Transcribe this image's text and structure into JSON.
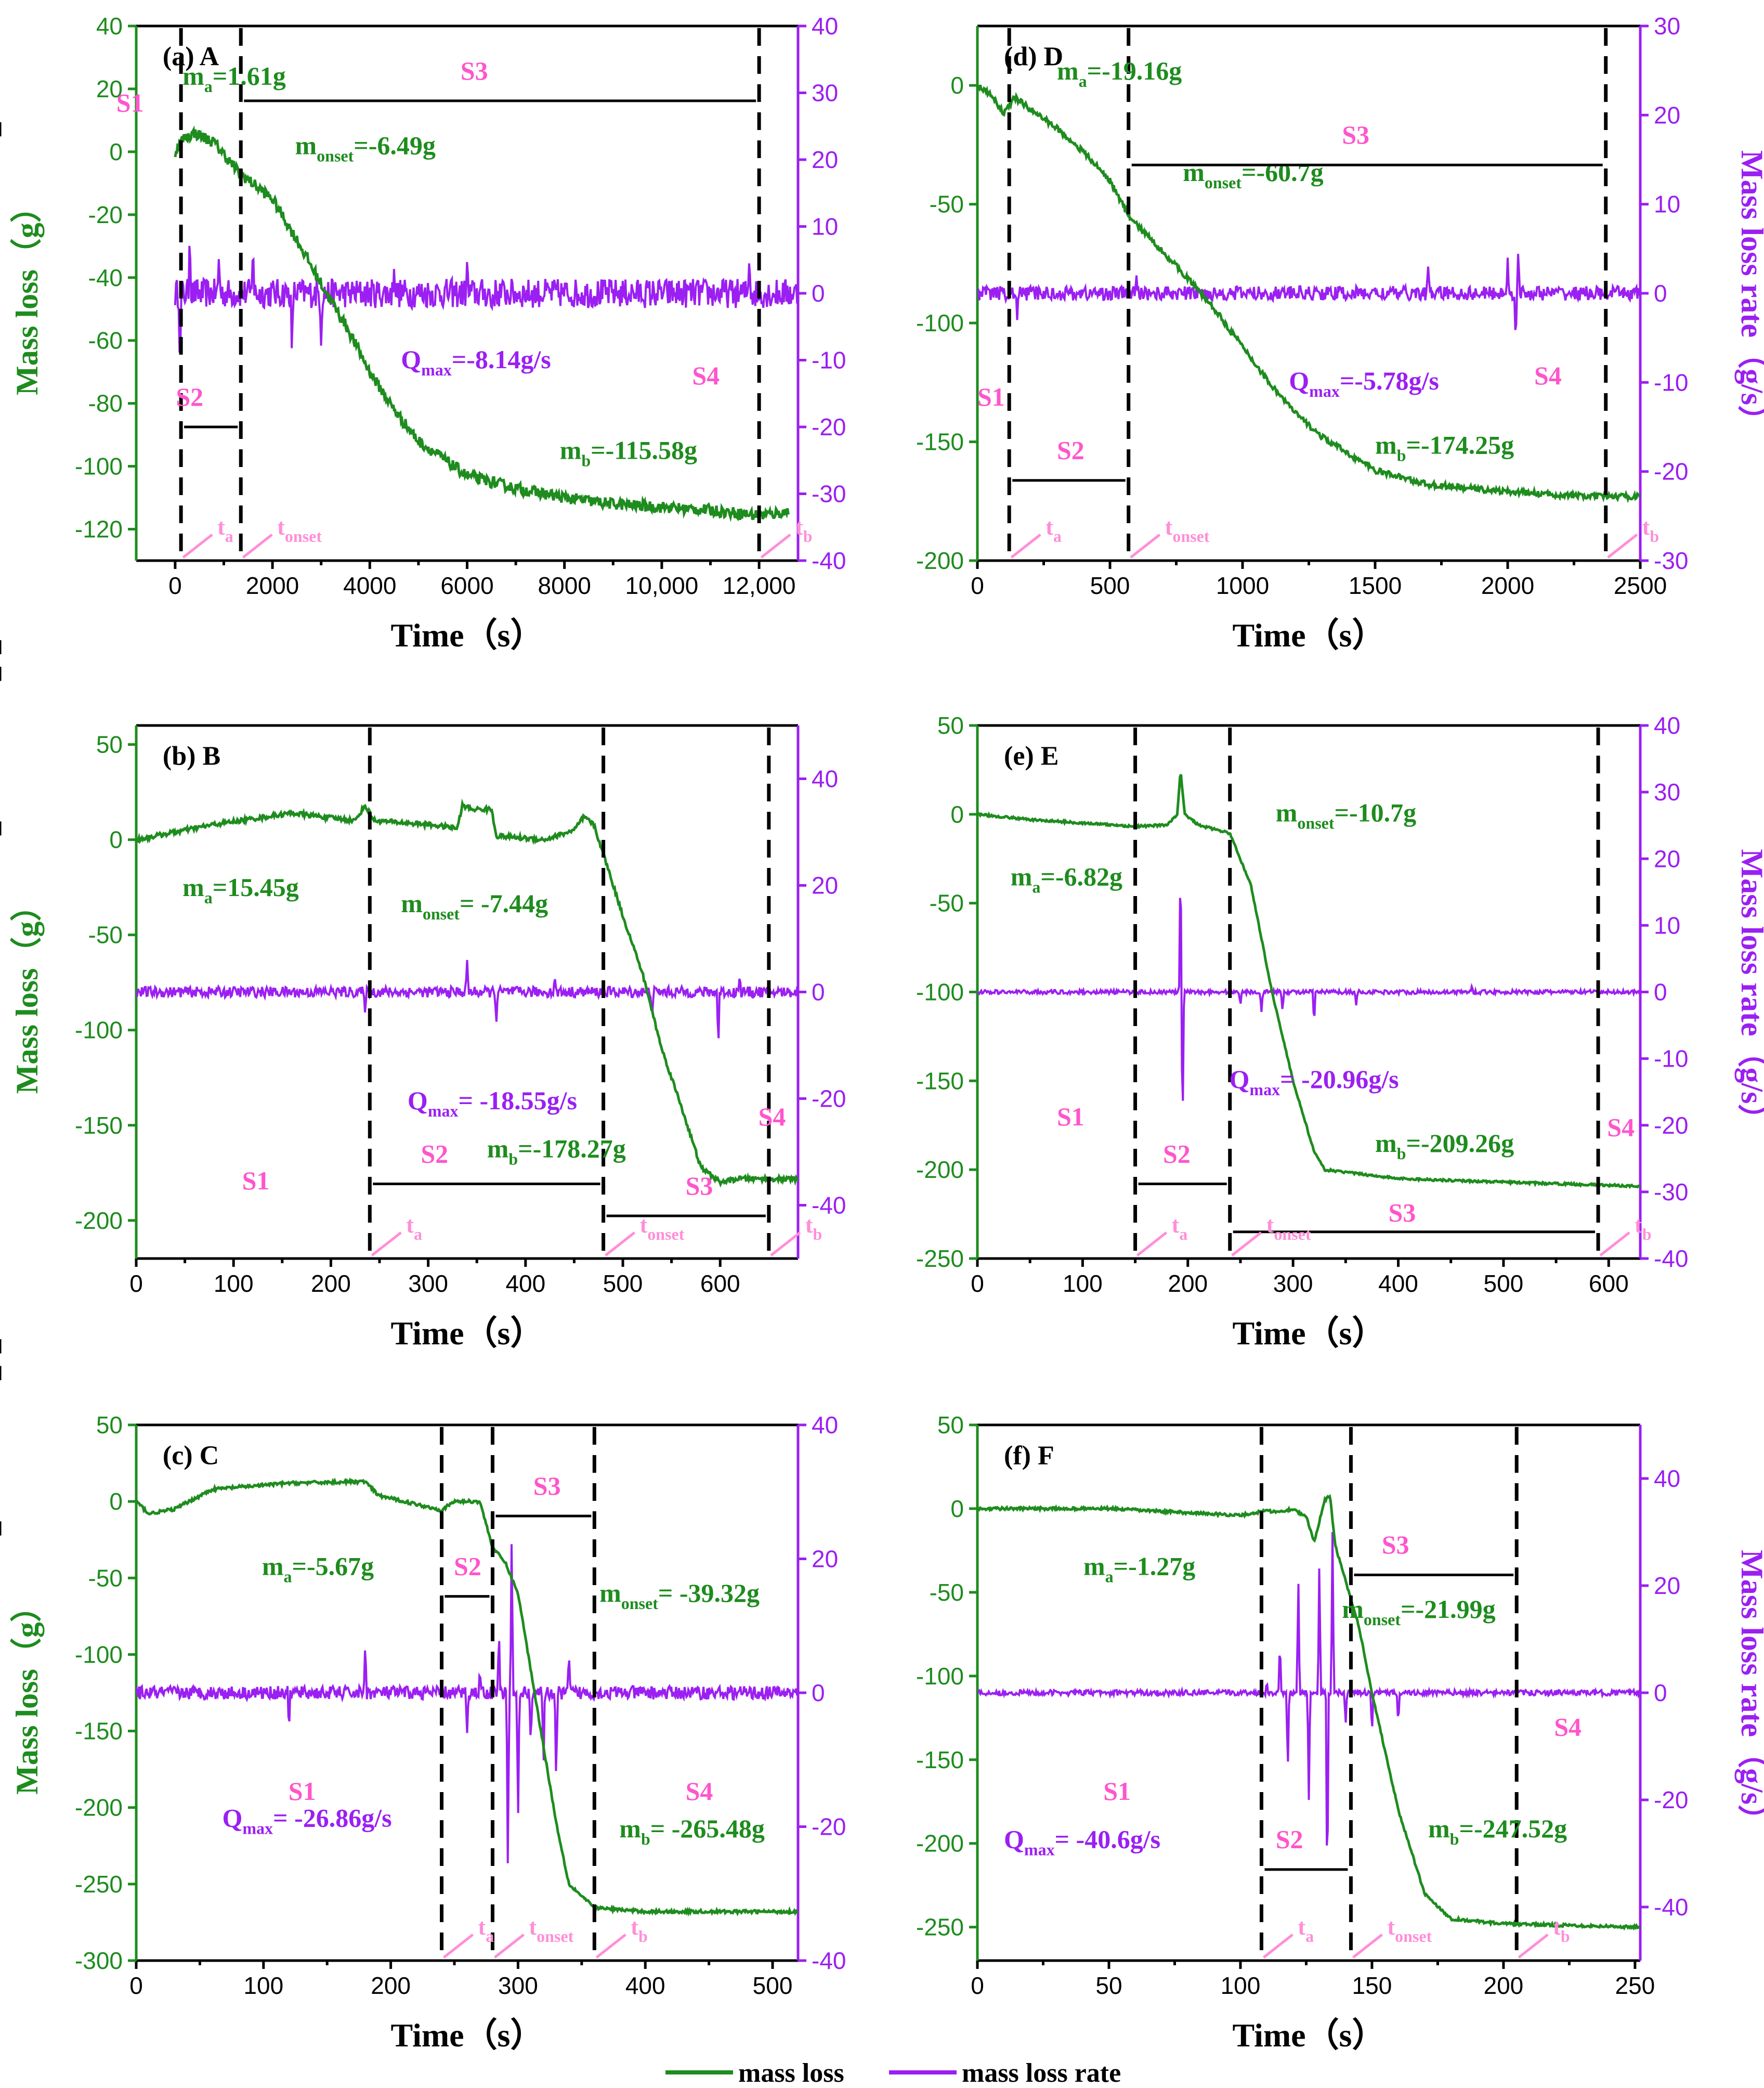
{
  "legend": {
    "mass_loss": "mass loss",
    "mass_loss_rate": "mass loss rate"
  },
  "colors": {
    "mass_loss": "#1e8c1e",
    "mass_loss_rate": "#9b1ff2",
    "stage_label": "#ff55cc",
    "time_label": "#ff8ed8"
  },
  "chart_data": [
    {
      "id": "a",
      "type": "line",
      "label": "(a)",
      "sample": "A",
      "xlabel": "Time（s）",
      "ylabel": "Mass loss（g）",
      "y2label": "",
      "xlim": [
        -800,
        12800
      ],
      "xticks": [
        0,
        2000,
        4000,
        6000,
        8000,
        10000,
        12000
      ],
      "xticklabels": [
        "0",
        "2000",
        "4000",
        "6000",
        "8000",
        "10,000",
        "12,000"
      ],
      "ylim": [
        -130,
        40
      ],
      "yticks": [
        -120,
        -100,
        -80,
        -60,
        -40,
        -20,
        0,
        20,
        40
      ],
      "y2lim": [
        -40,
        40
      ],
      "y2ticks": [
        -40,
        -30,
        -20,
        -10,
        0,
        10,
        20,
        30,
        40
      ],
      "mass_keys": [
        [
          0,
          0
        ],
        [
          150,
          4
        ],
        [
          400,
          6
        ],
        [
          800,
          3
        ],
        [
          1300,
          -6.49
        ],
        [
          2000,
          -15
        ],
        [
          2500,
          -28
        ],
        [
          3000,
          -42
        ],
        [
          3500,
          -55
        ],
        [
          4000,
          -70
        ],
        [
          4500,
          -82
        ],
        [
          5000,
          -92
        ],
        [
          6000,
          -103
        ],
        [
          7000,
          -107
        ],
        [
          8000,
          -110
        ],
        [
          9000,
          -112
        ],
        [
          10000,
          -113
        ],
        [
          11000,
          -114
        ],
        [
          12000,
          -115.6
        ],
        [
          12600,
          -114.5
        ]
      ],
      "mass_noise": 1.8,
      "rate_noise": 2.2,
      "rate_spikes": [
        [
          100,
          -12
        ],
        [
          300,
          10
        ],
        [
          900,
          6
        ],
        [
          1600,
          8
        ],
        [
          2400,
          -10
        ],
        [
          3000,
          -8.14
        ],
        [
          4500,
          4
        ],
        [
          6000,
          5
        ],
        [
          6500,
          -3
        ],
        [
          11800,
          6
        ]
      ],
      "dividers": [
        120,
        1350,
        12000
      ],
      "ann": {
        "ma": "=1.61g",
        "monset": "=-6.49g",
        "qmax": "=-8.14g/s",
        "mb": "=-115.58g"
      },
      "stages": {
        "s1": "S1",
        "s2": "S2",
        "s3": "S3",
        "s4": "S4"
      }
    },
    {
      "id": "b",
      "type": "line",
      "label": "(b)",
      "sample": "B",
      "xlabel": "Time（s）",
      "ylabel": "Mass loss（g）",
      "y2label": "",
      "xlim": [
        0,
        680
      ],
      "xticks": [
        0,
        100,
        200,
        300,
        400,
        500,
        600
      ],
      "xticklabels": [
        "0",
        "100",
        "200",
        "300",
        "400",
        "500",
        "600"
      ],
      "ylim": [
        -220,
        60
      ],
      "yticks": [
        -200,
        -150,
        -100,
        -50,
        0,
        50
      ],
      "y2lim": [
        -50,
        50
      ],
      "y2ticks": [
        -40,
        -20,
        0,
        20,
        40
      ],
      "mass_keys": [
        [
          0,
          0
        ],
        [
          80,
          8
        ],
        [
          160,
          14
        ],
        [
          225,
          10
        ],
        [
          235,
          18
        ],
        [
          245,
          10
        ],
        [
          300,
          8
        ],
        [
          330,
          6
        ],
        [
          335,
          18
        ],
        [
          345,
          16
        ],
        [
          365,
          16
        ],
        [
          370,
          2
        ],
        [
          420,
          0
        ],
        [
          450,
          5
        ],
        [
          460,
          12
        ],
        [
          470,
          8
        ],
        [
          480,
          -7.44
        ],
        [
          500,
          -40
        ],
        [
          520,
          -70
        ],
        [
          540,
          -110
        ],
        [
          560,
          -140
        ],
        [
          580,
          -172
        ],
        [
          600,
          -180
        ],
        [
          620,
          -178
        ],
        [
          680,
          -178.3
        ]
      ],
      "mass_noise": 1.2,
      "rate_noise": 1.0,
      "rate_spikes": [
        [
          235,
          -4
        ],
        [
          340,
          6
        ],
        [
          370,
          -6
        ],
        [
          430,
          3
        ],
        [
          530,
          -5
        ],
        [
          598,
          22
        ],
        [
          598,
          -18
        ],
        [
          620,
          3
        ]
      ],
      "dividers": [
        240,
        480,
        650
      ],
      "ann": {
        "ma": "=15.45g",
        "monset": "= -7.44g",
        "qmax": "= -18.55g/s",
        "mb": "=-178.27g"
      },
      "stages": {
        "s1": "S1",
        "s2": "S2",
        "s3": "S3",
        "s4": "S4"
      }
    },
    {
      "id": "c",
      "type": "line",
      "label": "(c)",
      "sample": "C",
      "xlabel": "Time（s）",
      "ylabel": "Mass loss（g）",
      "y2label": "",
      "xlim": [
        0,
        520
      ],
      "xticks": [
        0,
        100,
        200,
        300,
        400,
        500
      ],
      "xticklabels": [
        "0",
        "100",
        "200",
        "300",
        "400",
        "500"
      ],
      "ylim": [
        -300,
        50
      ],
      "yticks": [
        -300,
        -250,
        -200,
        -150,
        -100,
        -50,
        0,
        50
      ],
      "y2lim": [
        -40,
        40
      ],
      "y2ticks": [
        -40,
        -20,
        0,
        20,
        40
      ],
      "mass_keys": [
        [
          0,
          0
        ],
        [
          10,
          -8
        ],
        [
          30,
          -5
        ],
        [
          60,
          8
        ],
        [
          120,
          12
        ],
        [
          180,
          13
        ],
        [
          190,
          4
        ],
        [
          240,
          -5.67
        ],
        [
          250,
          0
        ],
        [
          270,
          0
        ],
        [
          280,
          -30
        ],
        [
          290,
          -40
        ],
        [
          300,
          -60
        ],
        [
          310,
          -110
        ],
        [
          320,
          -160
        ],
        [
          330,
          -210
        ],
        [
          340,
          -250
        ],
        [
          360,
          -265.5
        ],
        [
          400,
          -268
        ],
        [
          520,
          -268
        ]
      ],
      "mass_noise": 1.0,
      "rate_noise": 1.0,
      "rate_spikes": [
        [
          120,
          -6
        ],
        [
          180,
          8
        ],
        [
          260,
          -6
        ],
        [
          270,
          4
        ],
        [
          285,
          10
        ],
        [
          292,
          -26.86
        ],
        [
          295,
          24
        ],
        [
          300,
          -20
        ],
        [
          310,
          -8
        ],
        [
          320,
          -12
        ],
        [
          330,
          -14
        ],
        [
          340,
          6
        ]
      ],
      "dividers": [
        240,
        280,
        360
      ],
      "ann": {
        "ma": "=-5.67g",
        "monset": "= -39.32g",
        "qmax": "= -26.86g/s",
        "mb": "= -265.48g"
      },
      "stages": {
        "s1": "S1",
        "s2": "S2",
        "s3": "S3",
        "s4": "S4"
      }
    },
    {
      "id": "d",
      "type": "line",
      "label": "(d)",
      "sample": "D",
      "xlabel": "Time（s）",
      "ylabel": "",
      "y2label": "Mass loss rate（g/s）",
      "xlim": [
        0,
        2500
      ],
      "xticks": [
        0,
        500,
        1000,
        1500,
        2000,
        2500
      ],
      "xticklabels": [
        "0",
        "500",
        "1000",
        "1500",
        "2000",
        "2500"
      ],
      "ylim": [
        -200,
        25
      ],
      "yticks": [
        -200,
        -150,
        -100,
        -50,
        0
      ],
      "y2lim": [
        -30,
        30
      ],
      "y2ticks": [
        -30,
        -20,
        -10,
        0,
        10,
        20,
        30
      ],
      "mass_keys": [
        [
          0,
          0
        ],
        [
          60,
          -5
        ],
        [
          100,
          -12
        ],
        [
          140,
          -5
        ],
        [
          200,
          -10
        ],
        [
          300,
          -18
        ],
        [
          400,
          -28
        ],
        [
          500,
          -40
        ],
        [
          570,
          -55
        ],
        [
          700,
          -70
        ],
        [
          800,
          -82
        ],
        [
          900,
          -95
        ],
        [
          1000,
          -110
        ],
        [
          1100,
          -125
        ],
        [
          1200,
          -138
        ],
        [
          1300,
          -148
        ],
        [
          1400,
          -155
        ],
        [
          1500,
          -162
        ],
        [
          1700,
          -168
        ],
        [
          2000,
          -171
        ],
        [
          2300,
          -173
        ],
        [
          2500,
          -173
        ]
      ],
      "mass_noise": 1.2,
      "rate_noise": 0.8,
      "rate_spikes": [
        [
          150,
          -3
        ],
        [
          600,
          2
        ],
        [
          1700,
          3
        ],
        [
          2000,
          4
        ],
        [
          2030,
          -5.78
        ],
        [
          2040,
          5
        ]
      ],
      "dividers": [
        120,
        570,
        2370
      ],
      "ann": {
        "ma": "=-19.16g",
        "monset": "=-60.7g",
        "qmax": "=-5.78g/s",
        "mb": "=-174.25g"
      },
      "stages": {
        "s1": "S1",
        "s2": "S2",
        "s3": "S3",
        "s4": "S4"
      }
    },
    {
      "id": "e",
      "type": "line",
      "label": "(e)",
      "sample": "E",
      "xlabel": "Time（s）",
      "ylabel": "",
      "y2label": "Mass loss rate（g/s）",
      "xlim": [
        0,
        630
      ],
      "xticks": [
        0,
        100,
        200,
        300,
        400,
        500,
        600
      ],
      "xticklabels": [
        "0",
        "100",
        "200",
        "300",
        "400",
        "500",
        "600"
      ],
      "ylim": [
        -250,
        50
      ],
      "yticks": [
        -250,
        -200,
        -150,
        -100,
        -50,
        0,
        50
      ],
      "y2lim": [
        -40,
        40
      ],
      "y2ticks": [
        -40,
        -30,
        -20,
        -10,
        0,
        10,
        20,
        30,
        40
      ],
      "mass_keys": [
        [
          0,
          0
        ],
        [
          50,
          -3
        ],
        [
          150,
          -6.82
        ],
        [
          180,
          -6
        ],
        [
          190,
          0
        ],
        [
          193,
          25
        ],
        [
          197,
          0
        ],
        [
          210,
          -6
        ],
        [
          240,
          -10.7
        ],
        [
          260,
          -40
        ],
        [
          280,
          -100
        ],
        [
          300,
          -150
        ],
        [
          320,
          -190
        ],
        [
          330,
          -200
        ],
        [
          400,
          -205
        ],
        [
          500,
          -207
        ],
        [
          630,
          -209.3
        ]
      ],
      "mass_noise": 0.6,
      "rate_noise": 0.3,
      "rate_spikes": [
        [
          193,
          20
        ],
        [
          195,
          -20.96
        ],
        [
          250,
          -2
        ],
        [
          270,
          -3
        ],
        [
          290,
          -3
        ],
        [
          320,
          -5
        ],
        [
          360,
          -2
        ],
        [
          470,
          1
        ]
      ],
      "dividers": [
        150,
        240,
        590
      ],
      "ann": {
        "ma": "=-6.82g",
        "monset": "=-10.7g",
        "qmax": "= -20.96g/s",
        "mb": "=-209.26g"
      },
      "stages": {
        "s1": "S1",
        "s2": "S2",
        "s3": "S3",
        "s4": "S4"
      }
    },
    {
      "id": "f",
      "type": "line",
      "label": "(f)",
      "sample": "F",
      "xlabel": "Time（s）",
      "ylabel": "",
      "y2label": "Mass loss rate（g/s）",
      "xlim": [
        0,
        252
      ],
      "xticks": [
        0,
        50,
        100,
        150,
        200,
        250
      ],
      "xticklabels": [
        "0",
        "50",
        "100",
        "150",
        "200",
        "250"
      ],
      "ylim": [
        -270,
        50
      ],
      "yticks": [
        -250,
        -200,
        -150,
        -100,
        -50,
        0,
        50
      ],
      "y2lim": [
        -50,
        50
      ],
      "y2ticks": [
        -40,
        -20,
        0,
        20,
        40
      ],
      "mass_keys": [
        [
          0,
          0
        ],
        [
          50,
          0
        ],
        [
          100,
          -4
        ],
        [
          110,
          -1.27
        ],
        [
          115,
          -2
        ],
        [
          120,
          0
        ],
        [
          125,
          -5
        ],
        [
          128,
          -20
        ],
        [
          132,
          5
        ],
        [
          134,
          8
        ],
        [
          136,
          -21.99
        ],
        [
          145,
          -70
        ],
        [
          150,
          -110
        ],
        [
          160,
          -180
        ],
        [
          170,
          -230
        ],
        [
          180,
          -245
        ],
        [
          200,
          -248
        ],
        [
          252,
          -250
        ]
      ],
      "mass_noise": 0.8,
      "rate_noise": 0.5,
      "rate_spikes": [
        [
          110,
          2
        ],
        [
          115,
          10
        ],
        [
          118,
          -15
        ],
        [
          122,
          22
        ],
        [
          126,
          -20
        ],
        [
          130,
          25
        ],
        [
          133,
          -40.6
        ],
        [
          135,
          30
        ],
        [
          140,
          -6
        ],
        [
          150,
          -8
        ],
        [
          160,
          -6
        ]
      ],
      "dividers": [
        108,
        142,
        205
      ],
      "ann": {
        "ma": "=-1.27g",
        "monset": "=-21.99g",
        "qmax": "= -40.6g/s",
        "mb": "=-247.52g"
      },
      "stages": {
        "s1": "S1",
        "s2": "S2",
        "s3": "S3",
        "s4": "S4"
      }
    }
  ]
}
